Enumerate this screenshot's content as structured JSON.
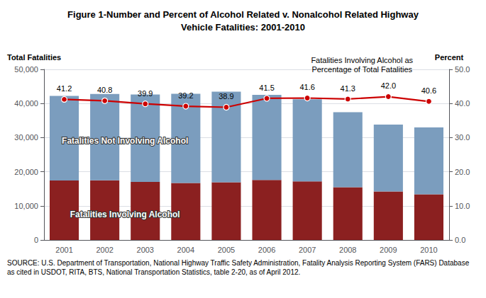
{
  "chart_data": {
    "type": "bar",
    "title": "Figure 1-Number and Percent of Alcohol Related v. Nonalcohol Related Highway\nVehicle Fatalities: 2001-2010",
    "ylabel": "Total Fatalities",
    "y2label": "Percent",
    "categories": [
      "2001",
      "2002",
      "2003",
      "2004",
      "2005",
      "2006",
      "2007",
      "2008",
      "2009",
      "2010"
    ],
    "stacked": true,
    "grid": true,
    "series": [
      {
        "name": "Fatalities Involving Alcohol",
        "color": "#8B2020",
        "values": [
          17416,
          17470,
          17013,
          16694,
          16885,
          17602,
          17163,
          15455,
          14199,
          13398
        ]
      },
      {
        "name": "Fatalities Not Involving Alcohol",
        "color": "#7B9DBE",
        "values": [
          24780,
          25345,
          25630,
          26142,
          26558,
          24930,
          24096,
          21968,
          19609,
          19601
        ]
      },
      {
        "name": "Fatalities Involving Alcohol as\nPercentage of Total Fatalities",
        "type": "line",
        "axis": "y2",
        "color": "#CC0000",
        "marker": "circle",
        "data_labels": true,
        "values": [
          41.2,
          40.8,
          39.9,
          39.2,
          38.9,
          41.5,
          41.6,
          41.3,
          42.0,
          40.6
        ],
        "value_labels": [
          "41.2",
          "40.8",
          "39.9",
          "39.2",
          "38.9",
          "41.5",
          "41.6",
          "41.3",
          "42.0",
          "40.6"
        ]
      }
    ],
    "ylim": [
      0,
      50000
    ],
    "yticks": [
      0,
      {
        "value": 10000,
        "label": "10,000"
      },
      {
        "value": 20000,
        "label": "20,000"
      },
      {
        "value": 30000,
        "label": "30,000"
      },
      {
        "value": 40000,
        "label": "40,000"
      },
      {
        "value": 50000,
        "label": "50,000"
      }
    ],
    "y2lim": [
      0.0,
      50.0
    ],
    "y2ticks": [
      {
        "value": 0,
        "label": "0.0"
      },
      {
        "value": 10,
        "label": "10.0"
      },
      {
        "value": 20,
        "label": "20.0"
      },
      {
        "value": 30,
        "label": "30.0"
      },
      {
        "value": 40,
        "label": "40.0"
      },
      {
        "value": 50,
        "label": "50.0"
      }
    ],
    "annotations": [
      "SOURCE: U.S. Department of Transportation, National Highway Traffic Safety Administration, Fatality Analysis Reporting System (FARS) Database as cited in USDOT, RITA, BTS, National Transportation Statistics, table 2-20, as of April 2012."
    ]
  }
}
